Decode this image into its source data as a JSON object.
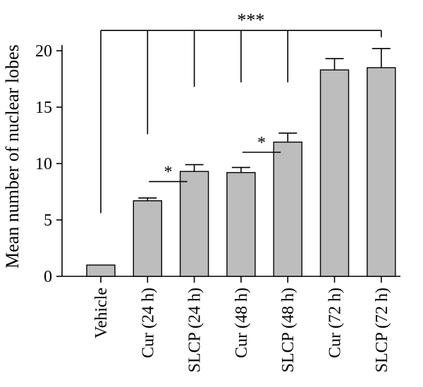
{
  "chart_data": {
    "type": "bar",
    "title": "",
    "xlabel": "",
    "ylabel": "Mean number of nuclear lobes",
    "ylim": [
      0,
      20.5
    ],
    "yticks": [
      0,
      5,
      10,
      15,
      20
    ],
    "ytick_labels": [
      "0",
      "5",
      "10",
      "15",
      "20"
    ],
    "grid": false,
    "legend": "none",
    "categories": [
      "Vehicle",
      "Cur (24 h)",
      "SLCP (24 h)",
      "Cur (48 h)",
      "SLCP (48 h)",
      "Cur (72 h)",
      "SLCP (72 h)"
    ],
    "values": [
      1.0,
      6.7,
      9.3,
      9.2,
      11.9,
      18.3,
      18.5
    ],
    "errors": [
      0,
      0.25,
      0.6,
      0.45,
      0.8,
      1.0,
      1.7
    ],
    "colors": {
      "bar_fill": "#bdbdbd",
      "bar_stroke": "#000000",
      "axis": "#000000"
    },
    "annotations": {
      "top_bracket": {
        "label": "***",
        "from": "Vehicle",
        "to": "SLCP (72 h)",
        "y": 21.8,
        "drops": [
          {
            "category": "Vehicle",
            "to": 5.6
          },
          {
            "category": "Cur (24 h)",
            "to": 12.6
          },
          {
            "category": "SLCP (24 h)",
            "to": 16.8
          },
          {
            "category": "Cur (48 h)",
            "to": 17.2
          },
          {
            "category": "SLCP (48 h)",
            "to": 17.2
          },
          {
            "category": "SLCP (72 h)",
            "to": 21.2
          }
        ]
      },
      "pair_brackets": [
        {
          "label": "*",
          "from": "Cur (24 h)",
          "to": "SLCP (24 h)",
          "y": 8.4
        },
        {
          "label": "*",
          "from": "Cur (48 h)",
          "to": "SLCP (48 h)",
          "y": 11.0
        }
      ]
    }
  }
}
